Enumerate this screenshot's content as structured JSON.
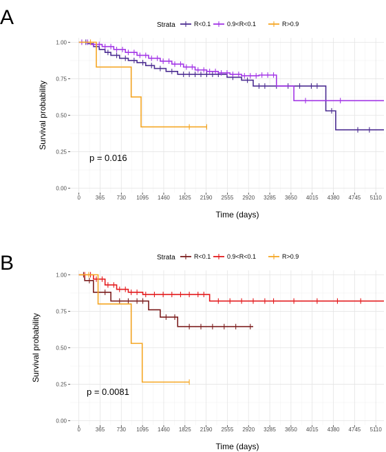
{
  "chart_data": [
    {
      "panel": "A",
      "type": "line",
      "xlabel": "Time (days)",
      "ylabel": "Survival probability",
      "xticks": [
        0,
        365,
        730,
        1095,
        1460,
        1825,
        2190,
        2555,
        2920,
        3285,
        3650,
        4015,
        4380,
        4745,
        5110
      ],
      "yticks": [
        0.0,
        0.25,
        0.5,
        0.75,
        1.0
      ],
      "ytick_labels": [
        "0.00",
        "0.25",
        "0.50",
        "0.75",
        "1.00"
      ],
      "xlim": [
        -150,
        5250
      ],
      "ylim": [
        -0.03,
        1.03
      ],
      "grid": true,
      "annotation": "p = 0.016",
      "legend": {
        "title": "Strata",
        "position": "top"
      },
      "series": [
        {
          "name": "R<0.1",
          "color": "#4B2C91",
          "steps": [
            [
              0,
              1.0
            ],
            [
              150,
              0.99
            ],
            [
              250,
              0.97
            ],
            [
              350,
              0.95
            ],
            [
              450,
              0.93
            ],
            [
              550,
              0.91
            ],
            [
              700,
              0.89
            ],
            [
              850,
              0.875
            ],
            [
              1000,
              0.86
            ],
            [
              1150,
              0.84
            ],
            [
              1300,
              0.82
            ],
            [
              1500,
              0.8
            ],
            [
              1700,
              0.78
            ],
            [
              2550,
              0.76
            ],
            [
              2800,
              0.74
            ],
            [
              3000,
              0.7
            ],
            [
              4250,
              0.53
            ],
            [
              4420,
              0.4
            ],
            [
              5250,
              0.4
            ]
          ],
          "censor": [
            120,
            300,
            500,
            650,
            800,
            950,
            1100,
            1250,
            1400,
            1600,
            1800,
            1900,
            2000,
            2100,
            2200,
            2300,
            2400,
            2650,
            2900,
            3100,
            3200,
            3400,
            3600,
            3800,
            4000,
            4100,
            4350,
            4800,
            5000
          ]
        },
        {
          "name": "0.9<R<0.1",
          "color": "#A235E6",
          "steps": [
            [
              0,
              1.0
            ],
            [
              200,
              0.985
            ],
            [
              400,
              0.97
            ],
            [
              600,
              0.95
            ],
            [
              800,
              0.93
            ],
            [
              1000,
              0.91
            ],
            [
              1200,
              0.89
            ],
            [
              1400,
              0.87
            ],
            [
              1600,
              0.85
            ],
            [
              1800,
              0.83
            ],
            [
              2000,
              0.81
            ],
            [
              2200,
              0.8
            ],
            [
              2400,
              0.79
            ],
            [
              2600,
              0.78
            ],
            [
              2800,
              0.77
            ],
            [
              3100,
              0.775
            ],
            [
              3400,
              0.7
            ],
            [
              3700,
              0.6
            ],
            [
              5250,
              0.6
            ]
          ],
          "censor": [
            50,
            150,
            250,
            350,
            450,
            550,
            650,
            750,
            850,
            950,
            1050,
            1150,
            1250,
            1350,
            1450,
            1550,
            1650,
            1750,
            1850,
            1950,
            2050,
            2150,
            2250,
            2350,
            2450,
            2550,
            2650,
            2750,
            2850,
            2950,
            3050,
            3150,
            3250,
            3350,
            3900,
            4500
          ]
        },
        {
          "name": "R>0.9",
          "color": "#F5A623",
          "steps": [
            [
              0,
              1.0
            ],
            [
              300,
              0.83
            ],
            [
              900,
              0.625
            ],
            [
              1070,
              0.42
            ],
            [
              2200,
              0.42
            ]
          ],
          "censor": [
            200,
            1900,
            2200
          ]
        }
      ]
    },
    {
      "panel": "B",
      "type": "line",
      "xlabel": "Time (days)",
      "ylabel": "Survival probability",
      "xticks": [
        0,
        365,
        730,
        1095,
        1460,
        1825,
        2190,
        2555,
        2920,
        3285,
        3650,
        4015,
        4380,
        4745,
        5110
      ],
      "yticks": [
        0.0,
        0.25,
        0.5,
        0.75,
        1.0
      ],
      "ytick_labels": [
        "0.00",
        "0.25",
        "0.50",
        "0.75",
        "1.00"
      ],
      "xlim": [
        -150,
        5250
      ],
      "ylim": [
        -0.03,
        1.03
      ],
      "grid": true,
      "annotation": "p = 0.0081",
      "legend": {
        "title": "Strata",
        "position": "top"
      },
      "series": [
        {
          "name": "R<0.1",
          "color": "#7B1C1C",
          "steps": [
            [
              0,
              1.0
            ],
            [
              100,
              0.96
            ],
            [
              250,
              0.88
            ],
            [
              550,
              0.82
            ],
            [
              1200,
              0.76
            ],
            [
              1400,
              0.71
            ],
            [
              1700,
              0.645
            ],
            [
              3000,
              0.645
            ]
          ],
          "censor": [
            80,
            180,
            330,
            450,
            700,
            850,
            1000,
            1100,
            1500,
            1650,
            1900,
            2100,
            2300,
            2500,
            2700,
            2950
          ]
        },
        {
          "name": "0.9<R<0.1",
          "color": "#E41A1C",
          "steps": [
            [
              0,
              1.0
            ],
            [
              250,
              0.97
            ],
            [
              450,
              0.93
            ],
            [
              650,
              0.9
            ],
            [
              850,
              0.88
            ],
            [
              1100,
              0.865
            ],
            [
              2250,
              0.82
            ],
            [
              5250,
              0.82
            ]
          ],
          "censor": [
            100,
            200,
            300,
            400,
            500,
            600,
            700,
            800,
            900,
            1000,
            1150,
            1300,
            1450,
            1600,
            1750,
            1900,
            2050,
            2150,
            2400,
            2600,
            2800,
            3000,
            3200,
            3350,
            3700,
            4100,
            4450,
            4850
          ]
        },
        {
          "name": "R>0.9",
          "color": "#F5A623",
          "steps": [
            [
              0,
              1.0
            ],
            [
              330,
              0.8
            ],
            [
              900,
              0.53
            ],
            [
              1090,
              0.265
            ],
            [
              1900,
              0.265
            ]
          ],
          "censor": [
            170,
            1900
          ]
        }
      ]
    }
  ]
}
